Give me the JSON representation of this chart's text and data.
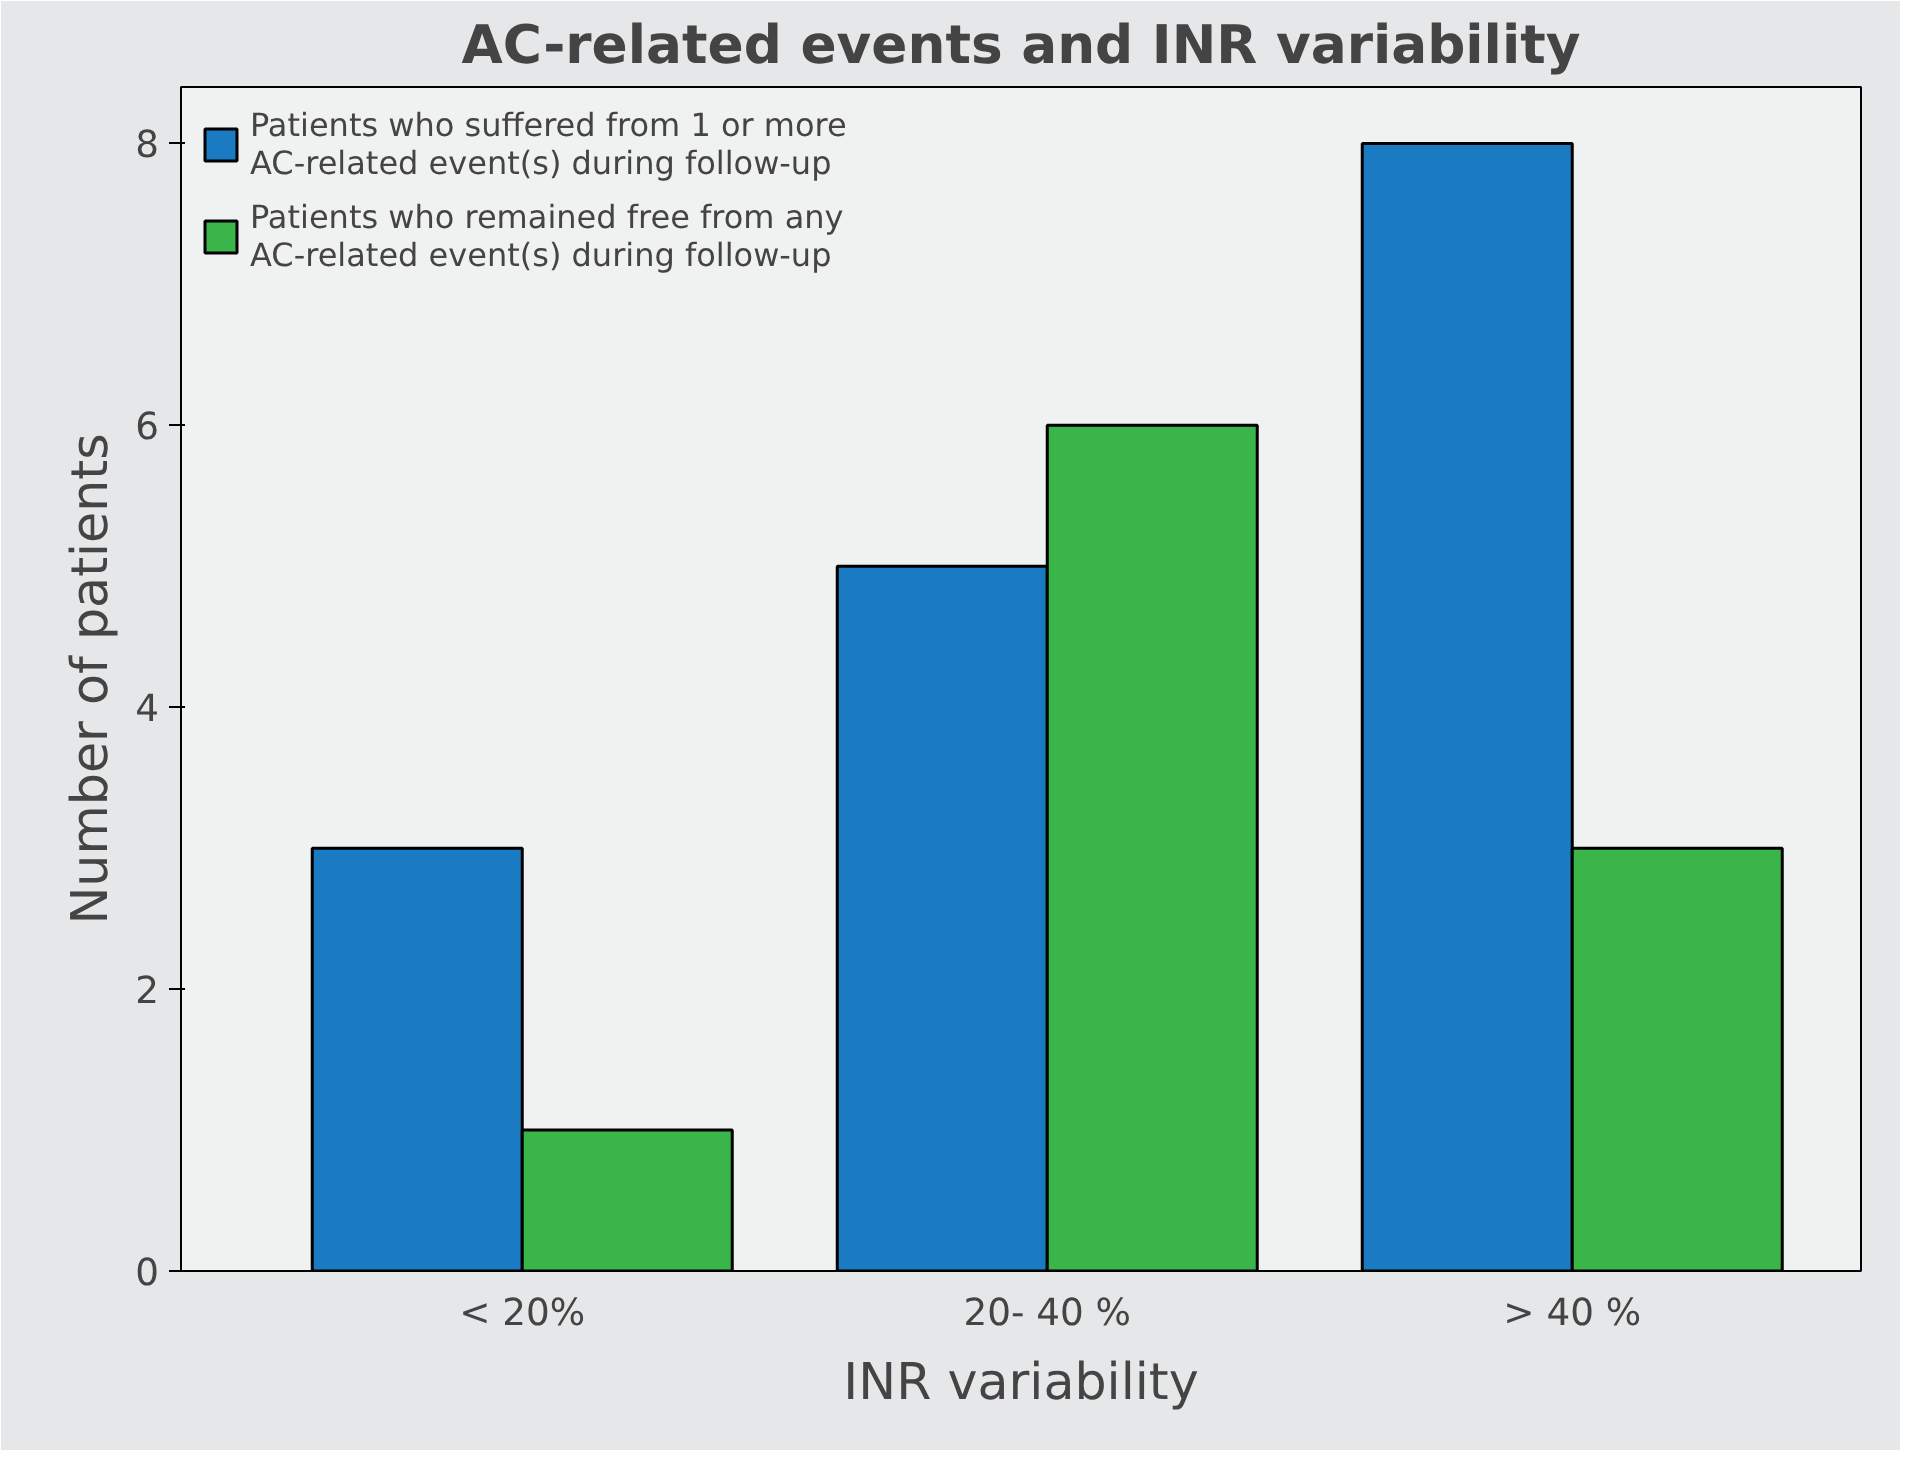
{
  "chart_data": {
    "type": "bar",
    "title": "AC-related events and INR variability",
    "xlabel": "INR variability",
    "ylabel": "Number of patients",
    "categories": [
      "< 20%",
      "20- 40 %",
      "> 40 %"
    ],
    "series": [
      {
        "name": "Patients who suffered from 1 or more AC-related event(s) during follow-up",
        "color": "#1a7bc3",
        "values": [
          3,
          5,
          8
        ]
      },
      {
        "name": "Patients who remained free from any AC-related event(s) during follow-up",
        "color": "#39b54a",
        "values": [
          1,
          6,
          3
        ]
      }
    ],
    "ylim": [
      0,
      8.4
    ],
    "yticks": [
      0,
      2,
      4,
      6,
      8
    ],
    "grid": false,
    "legend": "top left"
  }
}
